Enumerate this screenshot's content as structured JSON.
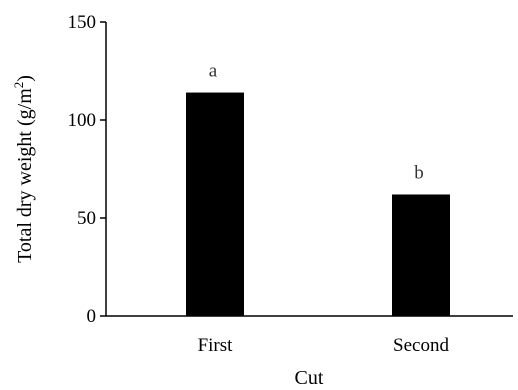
{
  "chart_data": {
    "type": "bar",
    "categories": [
      "First",
      "Second"
    ],
    "values": [
      114,
      62
    ],
    "significance_labels": [
      "a",
      "b"
    ],
    "xlabel": "Cut",
    "ylabel": "Total dry weight (g/m",
    "ylabel_superscript": "2",
    "ylabel_suffix": ")",
    "ylim": [
      0,
      150
    ],
    "yticks": [
      0,
      50,
      100,
      150
    ],
    "bar_color": "#000000",
    "grid": false,
    "legend": "none"
  }
}
